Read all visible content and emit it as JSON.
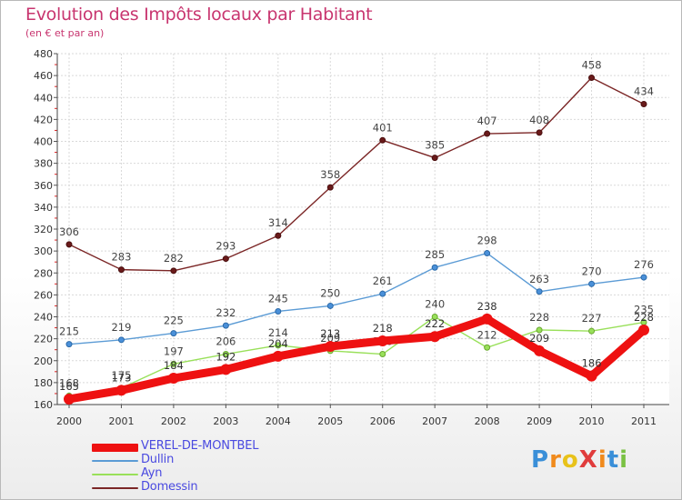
{
  "chart_data": {
    "type": "line",
    "title": "Evolution des Impôts locaux par Habitant",
    "subtitle": "(en € et par an)",
    "xlabel": "",
    "ylabel": "",
    "categories": [
      "2000",
      "2001",
      "2002",
      "2003",
      "2004",
      "2005",
      "2006",
      "2007",
      "2008",
      "2009",
      "2010",
      "2011"
    ],
    "ylim": [
      160,
      480
    ],
    "yticks": [
      160,
      180,
      200,
      220,
      240,
      260,
      280,
      300,
      320,
      340,
      360,
      380,
      400,
      420,
      440,
      460,
      480
    ],
    "grid": true,
    "legend_position": "bottom-left",
    "series": [
      {
        "name": "VEREL-DE-MONTBEL",
        "color": "#ee1111",
        "values": [
          165,
          173,
          184,
          192,
          204,
          213,
          218,
          222,
          238,
          209,
          186,
          228
        ]
      },
      {
        "name": "Dullin",
        "color": "#5b9bd5",
        "values": [
          215,
          219,
          225,
          232,
          245,
          250,
          261,
          285,
          298,
          263,
          270,
          276
        ]
      },
      {
        "name": "Ayn",
        "color": "#99e05a",
        "values": [
          168,
          175,
          197,
          206,
          214,
          209,
          206,
          240,
          212,
          228,
          227,
          235
        ]
      },
      {
        "name": "Domessin",
        "color": "#7b2626",
        "values": [
          306,
          283,
          282,
          293,
          314,
          358,
          401,
          385,
          407,
          408,
          458,
          434
        ]
      }
    ]
  },
  "logo": {
    "text": "ProXiti",
    "letter_colors": [
      "#3a8fd8",
      "#f08a1c",
      "#e8c21a",
      "#e03c3c",
      "#f08a1c",
      "#3a8fd8",
      "#7ac143"
    ]
  }
}
